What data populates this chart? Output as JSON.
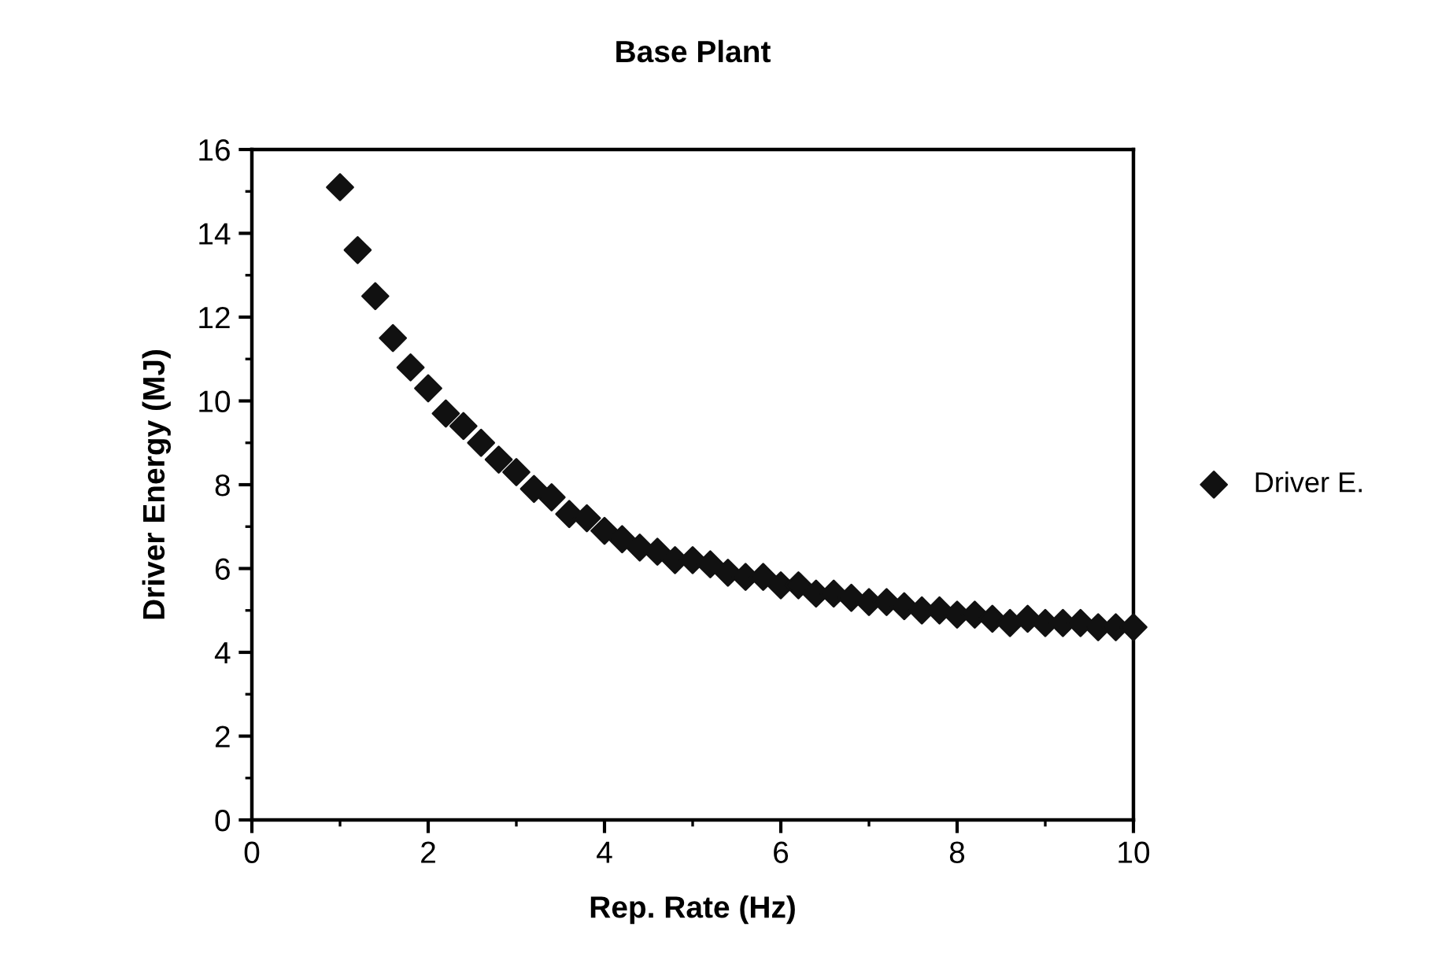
{
  "chart_data": {
    "type": "scatter",
    "title": "Base Plant",
    "xlabel": "Rep. Rate (Hz)",
    "ylabel": "Driver Energy (MJ)",
    "x": [
      1.0,
      1.2,
      1.4,
      1.6,
      1.8,
      2.0,
      2.2,
      2.4,
      2.6,
      2.8,
      3.0,
      3.2,
      3.4,
      3.6,
      3.8,
      4.0,
      4.2,
      4.4,
      4.6,
      4.8,
      5.0,
      5.2,
      5.4,
      5.6,
      5.8,
      6.0,
      6.2,
      6.4,
      6.6,
      6.8,
      7.0,
      7.2,
      7.4,
      7.6,
      7.8,
      8.0,
      8.2,
      8.4,
      8.6,
      8.8,
      9.0,
      9.2,
      9.4,
      9.6,
      9.8,
      10.0
    ],
    "series": [
      {
        "name": "Driver E.",
        "color": "#111111",
        "values": [
          15.1,
          13.6,
          12.5,
          11.5,
          10.8,
          10.3,
          9.7,
          9.4,
          9.0,
          8.6,
          8.3,
          7.9,
          7.7,
          7.3,
          7.2,
          6.9,
          6.7,
          6.5,
          6.4,
          6.2,
          6.2,
          6.1,
          5.9,
          5.8,
          5.8,
          5.6,
          5.6,
          5.4,
          5.4,
          5.3,
          5.2,
          5.2,
          5.1,
          5.0,
          5.0,
          4.9,
          4.9,
          4.8,
          4.7,
          4.8,
          4.7,
          4.7,
          4.7,
          4.6,
          4.6,
          4.6
        ]
      }
    ],
    "xlim": [
      0,
      10
    ],
    "xticks": [
      0,
      2,
      4,
      6,
      8,
      10
    ],
    "ylim": [
      0,
      16
    ],
    "yticks": [
      0,
      2,
      4,
      6,
      8,
      10,
      12,
      14,
      16
    ],
    "marker": "diamond",
    "legend": "right",
    "grid": false
  }
}
